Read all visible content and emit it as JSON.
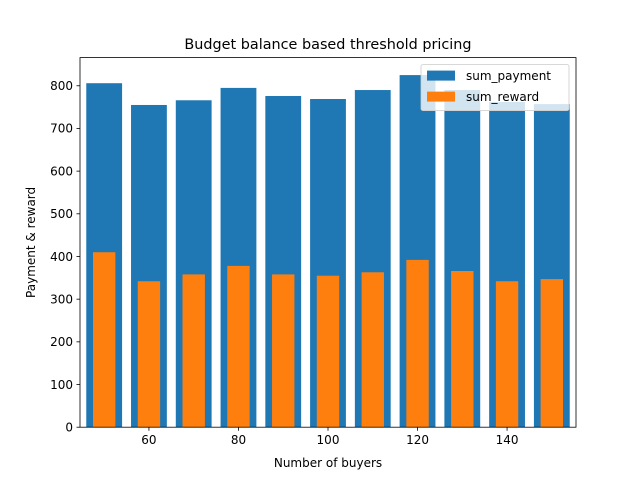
{
  "chart_data": {
    "type": "bar",
    "title": "Budget balance based threshold pricing",
    "xlabel": "Number of buyers",
    "ylabel": "Payment & reward",
    "x": [
      50,
      60,
      70,
      80,
      90,
      100,
      110,
      120,
      130,
      140,
      150
    ],
    "series": [
      {
        "name": "sum_payment",
        "color": "#1f77b4",
        "bar_width": 8,
        "values": [
          806,
          755,
          766,
          795,
          776,
          769,
          790,
          825,
          790,
          762,
          757
        ]
      },
      {
        "name": "sum_reward",
        "color": "#ff7f0e",
        "bar_width": 5,
        "values": [
          410,
          342,
          358,
          378,
          358,
          355,
          363,
          392,
          366,
          342,
          347
        ]
      }
    ],
    "xlim": [
      44.6,
      155.4
    ],
    "ylim": [
      0,
      866
    ],
    "xticks": [
      60,
      80,
      100,
      120,
      140
    ],
    "yticks": [
      0,
      100,
      200,
      300,
      400,
      500,
      600,
      700,
      800
    ],
    "grid": false,
    "legend_position": "upper right"
  }
}
